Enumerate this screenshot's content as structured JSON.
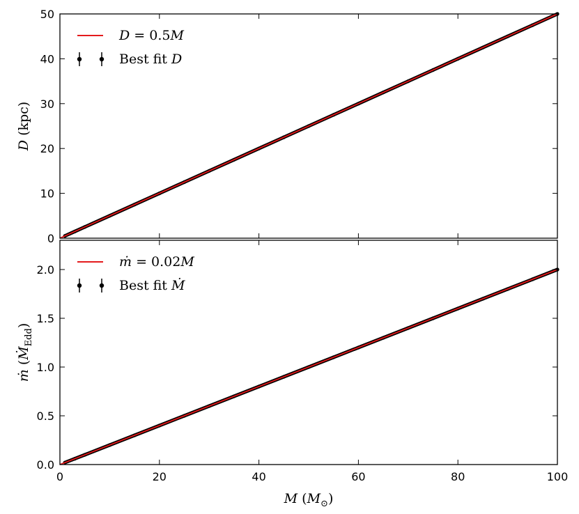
{
  "chart_data": [
    {
      "type": "line",
      "xlim": [
        0,
        100
      ],
      "ylim": [
        0,
        50
      ],
      "xticks": [
        "0",
        "20",
        "40",
        "60",
        "80",
        "100"
      ],
      "xtick_values": [
        0,
        20,
        40,
        60,
        80,
        100
      ],
      "yticks": [
        "0",
        "10",
        "20",
        "30",
        "40",
        "50"
      ],
      "ytick_values": [
        0,
        10,
        20,
        30,
        40,
        50
      ],
      "ylabel": "D (kpc)",
      "xlabel": "",
      "grid": false,
      "legend_position": "top-left",
      "series": [
        {
          "name": "D = 0.5M",
          "style": "line",
          "color": "#e41a1c",
          "x": [
            0,
            100
          ],
          "y": [
            0,
            50
          ]
        },
        {
          "name": "Best fit D",
          "style": "errorbar-points",
          "color": "#000000",
          "x": [
            1,
            3,
            5,
            10,
            15,
            20,
            25,
            30,
            35,
            40,
            45,
            50,
            55,
            60,
            65,
            70,
            75,
            80,
            85,
            90,
            95,
            100
          ],
          "y": [
            0.5,
            1.5,
            2.5,
            5,
            7.5,
            10,
            12.5,
            15,
            17.5,
            20,
            22.5,
            25,
            27.5,
            30,
            32.5,
            35,
            37.5,
            40,
            42.5,
            45,
            47.5,
            50
          ]
        }
      ]
    },
    {
      "type": "line",
      "xlim": [
        0,
        100
      ],
      "ylim": [
        0,
        2.3
      ],
      "xticks": [
        "0",
        "20",
        "40",
        "60",
        "80",
        "100"
      ],
      "xtick_values": [
        0,
        20,
        40,
        60,
        80,
        100
      ],
      "yticks": [
        "0.0",
        "0.5",
        "1.0",
        "1.5",
        "2.0"
      ],
      "ytick_values": [
        0,
        0.5,
        1.0,
        1.5,
        2.0
      ],
      "ylabel": "ṁ (Ṁ_Edd)",
      "xlabel": "M (M_⊙)",
      "grid": false,
      "legend_position": "top-left",
      "series": [
        {
          "name": "ṁ = 0.02M",
          "style": "line",
          "color": "#e41a1c",
          "x": [
            0,
            100
          ],
          "y": [
            0,
            2.0
          ]
        },
        {
          "name": "Best fit Ṁ",
          "style": "errorbar-points",
          "color": "#000000",
          "x": [
            1,
            3,
            5,
            10,
            15,
            20,
            25,
            30,
            35,
            40,
            45,
            50,
            55,
            60,
            65,
            70,
            75,
            80,
            85,
            90,
            95,
            100
          ],
          "y": [
            0.02,
            0.06,
            0.1,
            0.2,
            0.3,
            0.4,
            0.5,
            0.6,
            0.7,
            0.8,
            0.9,
            1.0,
            1.1,
            1.2,
            1.3,
            1.4,
            1.5,
            1.6,
            1.7,
            1.8,
            1.9,
            2.0
          ]
        }
      ]
    }
  ]
}
